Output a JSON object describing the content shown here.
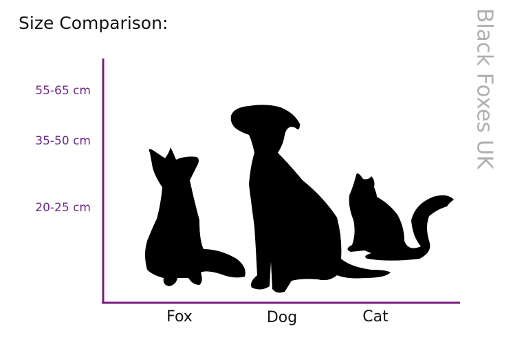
{
  "title": "Size Comparison:",
  "watermark": "Black Foxes UK",
  "size_labels": [
    "55-65 cm",
    "35-50 cm",
    "20-25 cm"
  ],
  "animals": [
    "Fox",
    "Dog",
    "Cat"
  ]
}
